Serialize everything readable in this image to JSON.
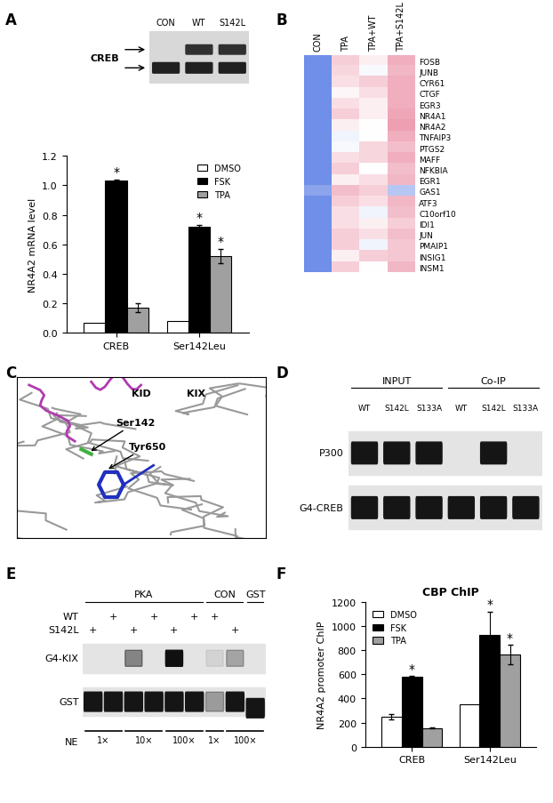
{
  "panel_labels": [
    "A",
    "B",
    "C",
    "D",
    "E",
    "F"
  ],
  "gel_A": {
    "lanes": [
      "CON",
      "WT",
      "S142L"
    ],
    "row_label": "CREB"
  },
  "chart_data": [
    {
      "type": "bar",
      "ylabel": "NR4A2 mRNA level",
      "categories": [
        "CREB",
        "Ser142Leu"
      ],
      "series": [
        {
          "name": "DMSO",
          "color": "#ffffff",
          "values": [
            0.07,
            0.08
          ],
          "errors": [
            null,
            null
          ]
        },
        {
          "name": "FSK",
          "color": "#000000",
          "values": [
            1.03,
            0.72
          ],
          "errors": [
            0.01,
            0.01
          ]
        },
        {
          "name": "TPA",
          "color": "#a0a0a0",
          "values": [
            0.17,
            0.52
          ],
          "errors": [
            0.03,
            0.05
          ]
        }
      ],
      "ylim": [
        0,
        1.2
      ],
      "yticks": [
        {
          "value": 0,
          "label": "0.0"
        },
        {
          "value": 0.2,
          "label": "0.2"
        },
        {
          "value": 0.4,
          "label": "0.4"
        },
        {
          "value": 0.6,
          "label": "0.6"
        },
        {
          "value": 0.8,
          "label": "0.8"
        },
        {
          "value": 1.0,
          "label": "1.0"
        },
        {
          "value": 1.2,
          "label": "1.2"
        }
      ],
      "legend": "upper right",
      "annotations": [
        {
          "text": "*",
          "series": "FSK",
          "category": "CREB"
        },
        {
          "text": "*",
          "series": "FSK",
          "category": "Ser142Leu"
        },
        {
          "text": "*",
          "series": "TPA",
          "category": "Ser142Leu"
        }
      ]
    },
    {
      "type": "heatmap",
      "columns": [
        "CON",
        "TPA",
        "TPA+WT",
        "TPA+S142L"
      ],
      "rows": [
        "FOSB",
        "JUNB",
        "CYR61",
        "CTGF",
        "EGR3",
        "NR4A1",
        "NR4A2",
        "TNFAIP3",
        "PTGS2",
        "MAFF",
        "NFKBIA",
        "EGR1",
        "GAS1",
        "ATF3",
        "C10orf10",
        "IDI1",
        "JUN",
        "PMAIP1",
        "INSIG1",
        "INSM1"
      ],
      "cells": [
        [
          -1,
          0.3,
          0.1,
          0.5
        ],
        [
          -1,
          0.25,
          -0.05,
          0.45
        ],
        [
          -1,
          0.2,
          0.3,
          0.5
        ],
        [
          -1,
          0.05,
          0.2,
          0.5
        ],
        [
          -1,
          0.2,
          0.1,
          0.5
        ],
        [
          -1,
          0.3,
          0.1,
          0.55
        ],
        [
          -1,
          0.1,
          0.0,
          0.6
        ],
        [
          -1,
          -0.1,
          0.0,
          0.5
        ],
        [
          -1,
          -0.05,
          0.25,
          0.4
        ],
        [
          -1,
          0.2,
          0.25,
          0.5
        ],
        [
          -1,
          0.3,
          0.0,
          0.4
        ],
        [
          -1,
          0.1,
          0.2,
          0.45
        ],
        [
          -0.8,
          0.4,
          0.3,
          -0.5
        ],
        [
          -1,
          0.3,
          0.2,
          0.45
        ],
        [
          -1,
          0.2,
          -0.1,
          0.4
        ],
        [
          -1,
          0.2,
          0.1,
          0.3
        ],
        [
          -1,
          0.3,
          0.2,
          0.4
        ],
        [
          -1,
          0.3,
          -0.1,
          0.35
        ],
        [
          -1,
          0.1,
          0.3,
          0.35
        ],
        [
          -1,
          0.3,
          0.0,
          0.45
        ]
      ],
      "value_range": [
        -1,
        1
      ]
    },
    {
      "type": "bar",
      "title": "CBP ChIP",
      "ylabel": "NR4A2 promoter ChIP",
      "categories": [
        "CREB",
        "Ser142Leu"
      ],
      "series": [
        {
          "name": "DMSO",
          "color": "#ffffff",
          "values": [
            250,
            350
          ],
          "errors": [
            20,
            null
          ]
        },
        {
          "name": "FSK",
          "color": "#000000",
          "values": [
            580,
            930
          ],
          "errors": [
            5,
            190
          ]
        },
        {
          "name": "TPA",
          "color": "#a0a0a0",
          "values": [
            155,
            765
          ],
          "errors": [
            5,
            80
          ]
        }
      ],
      "ylim": [
        0,
        1200
      ],
      "yticks": [
        0,
        200,
        400,
        600,
        800,
        1000,
        1200
      ],
      "legend": "upper left",
      "annotations": [
        {
          "text": "*",
          "series": "FSK",
          "category": "CREB"
        },
        {
          "text": "*",
          "series": "FSK",
          "category": "Ser142Leu"
        },
        {
          "text": "*",
          "series": "TPA",
          "category": "Ser142Leu"
        }
      ]
    }
  ],
  "structure_C": {
    "domains": [
      "KID",
      "KIX"
    ],
    "residues": [
      "Ser142",
      "Tyr650"
    ]
  },
  "blot_D": {
    "groups": [
      {
        "label": "INPUT",
        "lanes": [
          "WT",
          "S142L",
          "S133A"
        ]
      },
      {
        "label": "Co-IP",
        "lanes": [
          "WT",
          "S142L",
          "S133A"
        ]
      }
    ],
    "rows": [
      "P300",
      "G4-CREB"
    ]
  },
  "blot_E": {
    "headers": [
      {
        "label": "PKA",
        "lanes": [
          1,
          6
        ]
      },
      {
        "label": "CON",
        "lanes": [
          7,
          8
        ]
      },
      {
        "label": "GST",
        "lanes": [
          9,
          9
        ]
      }
    ],
    "conditions": [
      {
        "label": "WT",
        "mark": "+",
        "lanes": [
          2,
          4,
          6,
          7
        ]
      },
      {
        "label": "S142L",
        "mark": "+",
        "lanes": [
          1,
          3,
          5,
          8
        ]
      }
    ],
    "rows": [
      "G4-KIX",
      "GST"
    ],
    "amount": {
      "label": "NE",
      "groups": [
        {
          "label": "1×",
          "lanes": [
            1,
            2
          ]
        },
        {
          "label": "10×",
          "lanes": [
            3,
            4
          ]
        },
        {
          "label": "100×",
          "lanes": [
            5,
            6
          ]
        },
        {
          "label": "1×",
          "lanes": [
            7,
            7
          ]
        },
        {
          "label": "100×",
          "lanes": [
            8,
            9
          ]
        }
      ]
    }
  }
}
